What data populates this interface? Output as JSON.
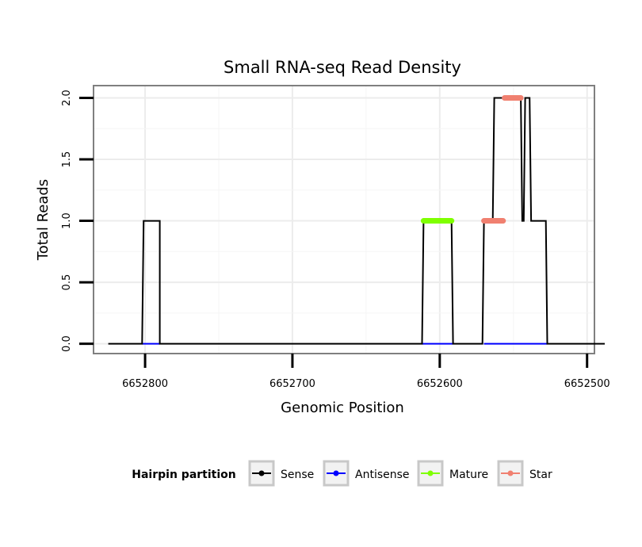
{
  "chart_data": {
    "type": "line",
    "title": "Small RNA-seq Read Density",
    "xlabel": "Genomic Position",
    "ylabel": "Total Reads",
    "xlim": [
      6652835,
      6652495
    ],
    "ylim": [
      -0.08,
      2.1
    ],
    "x_reversed": true,
    "x_ticks": [
      6652800,
      6652700,
      6652600,
      6652500
    ],
    "x_tick_labels": [
      "6652800",
      "6652700",
      "6652600",
      "6652500"
    ],
    "y_ticks": [
      0.0,
      0.5,
      1.0,
      1.5,
      2.0
    ],
    "y_tick_labels": [
      "0.0",
      "0.5",
      "1.0",
      "1.5",
      "2.0"
    ],
    "grid": true,
    "legend": {
      "title": "Hairpin partition",
      "position": "bottom",
      "entries": [
        {
          "name": "Sense",
          "color": "#000000"
        },
        {
          "name": "Antisense",
          "color": "#0000ff"
        },
        {
          "name": "Mature",
          "color": "#7fff00"
        },
        {
          "name": "Star",
          "color": "#f08070"
        }
      ]
    },
    "series": [
      {
        "name": "Sense",
        "color": "#000000",
        "x": [
          6652825,
          6652802,
          6652801,
          6652791,
          6652790,
          6652790,
          6652612,
          6652611,
          6652592,
          6652591,
          6652571,
          6652570,
          6652564,
          6652563,
          6652557,
          6652556,
          6652545,
          6652544,
          6652543,
          6652542,
          6652539,
          6652538,
          6652528,
          6652527,
          6652488
        ],
        "y": [
          0,
          0,
          1,
          1,
          1,
          0,
          0,
          1,
          1,
          0,
          0,
          1,
          1,
          2,
          2,
          2,
          2,
          1,
          1,
          2,
          2,
          1,
          1,
          0,
          0
        ]
      },
      {
        "name": "Antisense",
        "color": "#0000ff",
        "x": [
          6652802,
          6652790
        ],
        "y": [
          0,
          0
        ],
        "segments": [
          [
            6652802,
            6652790
          ],
          [
            6652612,
            6652591
          ],
          [
            6652570,
            6652527
          ]
        ]
      },
      {
        "name": "Mature",
        "color": "#7fff00",
        "x": [
          6652611,
          6652592
        ],
        "y": [
          1,
          1
        ]
      },
      {
        "name": "Star",
        "color": "#f08070",
        "segments": [
          {
            "x": [
              6652570,
              6652557
            ],
            "y": [
              1,
              1
            ]
          },
          {
            "x": [
              6652556,
              6652545
            ],
            "y": [
              2,
              2
            ]
          }
        ]
      }
    ]
  }
}
